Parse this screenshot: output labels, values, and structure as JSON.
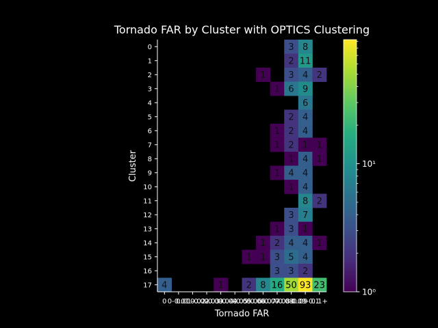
{
  "chart_data": {
    "type": "heatmap",
    "title": "Tornado FAR by Cluster with OPTICS Clustering",
    "xlabel": "Tornado FAR",
    "ylabel": "Cluster",
    "x_categories": [
      "0",
      "0-0.01",
      "0.01-0.02",
      "0.02-0.03",
      "0.03-0.04",
      "0.04-0.05",
      "0.05-0.06",
      "0.06-0.07",
      "0.07-0.08",
      "0.08-0.09",
      "0.09-0.1",
      "0.1+"
    ],
    "x_tick_labels": [
      "0",
      "0-0.01",
      "0.01-0.02",
      "0.02-0.03",
      "0.03-0.04",
      "0.04-0.05",
      "0.05-0.06",
      "0.06-0.07",
      "0.07-0.08",
      "0.08-0.09",
      "0.09-0.1",
      "0.1+"
    ],
    "y_categories": [
      "0",
      "1",
      "2",
      "3",
      "4",
      "5",
      "6",
      "7",
      "8",
      "9",
      "10",
      "11",
      "12",
      "13",
      "14",
      "15",
      "16",
      "17"
    ],
    "values": [
      [
        null,
        null,
        null,
        null,
        null,
        null,
        null,
        null,
        null,
        3,
        8,
        null
      ],
      [
        null,
        null,
        null,
        null,
        null,
        null,
        null,
        null,
        null,
        2,
        11,
        null
      ],
      [
        null,
        null,
        null,
        null,
        null,
        null,
        null,
        1,
        null,
        3,
        4,
        2
      ],
      [
        null,
        null,
        null,
        null,
        null,
        null,
        null,
        null,
        1,
        6,
        9,
        null
      ],
      [
        null,
        null,
        null,
        null,
        null,
        null,
        null,
        null,
        null,
        null,
        6,
        null
      ],
      [
        null,
        null,
        null,
        null,
        null,
        null,
        null,
        null,
        null,
        2,
        4,
        null
      ],
      [
        null,
        null,
        null,
        null,
        null,
        null,
        null,
        null,
        1,
        2,
        4,
        null
      ],
      [
        null,
        null,
        null,
        null,
        null,
        null,
        null,
        null,
        1,
        2,
        1,
        1
      ],
      [
        null,
        null,
        null,
        null,
        null,
        null,
        null,
        null,
        null,
        1,
        4,
        1
      ],
      [
        null,
        null,
        null,
        null,
        null,
        null,
        null,
        null,
        1,
        4,
        4,
        null
      ],
      [
        null,
        null,
        null,
        null,
        null,
        null,
        null,
        null,
        null,
        1,
        4,
        null
      ],
      [
        null,
        null,
        null,
        null,
        null,
        null,
        null,
        null,
        null,
        null,
        8,
        2
      ],
      [
        null,
        null,
        null,
        null,
        null,
        null,
        null,
        null,
        null,
        3,
        7,
        null
      ],
      [
        null,
        null,
        null,
        null,
        null,
        null,
        null,
        null,
        1,
        3,
        1,
        null
      ],
      [
        null,
        null,
        null,
        null,
        null,
        null,
        null,
        1,
        2,
        4,
        4,
        1
      ],
      [
        null,
        null,
        null,
        null,
        null,
        null,
        1,
        1,
        3,
        5,
        4,
        null
      ],
      [
        null,
        null,
        null,
        null,
        null,
        null,
        null,
        null,
        3,
        3,
        2,
        null
      ],
      [
        4,
        null,
        null,
        null,
        1,
        null,
        2,
        8,
        16,
        50,
        93,
        23
      ]
    ],
    "colormap": "viridis",
    "color_scale": "log",
    "colorbar_range": [
      1,
      93
    ],
    "colorbar_ticks": [
      {
        "value": 1,
        "label": "10⁰"
      },
      {
        "value": 10,
        "label": "10¹"
      }
    ],
    "grid": false,
    "legend": "colorbar-right"
  }
}
